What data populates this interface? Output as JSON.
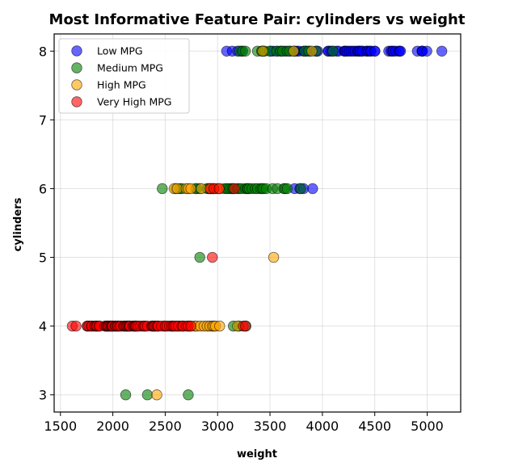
{
  "chart_data": {
    "type": "scatter",
    "title": "Most Informative Feature Pair: cylinders vs weight",
    "xlabel": "weight",
    "ylabel": "cylinders",
    "xlim": [
      1440,
      5320
    ],
    "ylim": [
      2.75,
      8.25
    ],
    "xticks": [
      1500,
      2000,
      2500,
      3000,
      3500,
      4000,
      4500,
      5000
    ],
    "yticks": [
      3,
      4,
      5,
      6,
      7,
      8
    ],
    "grid": true,
    "legend_position": "top-left",
    "series": [
      {
        "name": "Low MPG",
        "color": "#0000ff",
        "points": [
          [
            3086,
            8
          ],
          [
            3140,
            8
          ],
          [
            3190,
            8
          ],
          [
            3230,
            8
          ],
          [
            3430,
            8
          ],
          [
            3504,
            8
          ],
          [
            3530,
            8
          ],
          [
            3570,
            8
          ],
          [
            3609,
            8
          ],
          [
            3645,
            8
          ],
          [
            3693,
            8
          ],
          [
            3735,
            8
          ],
          [
            3755,
            8
          ],
          [
            3777,
            8
          ],
          [
            3820,
            8
          ],
          [
            3840,
            8
          ],
          [
            3850,
            8
          ],
          [
            3880,
            8
          ],
          [
            3940,
            8
          ],
          [
            3955,
            8
          ],
          [
            4054,
            8
          ],
          [
            4060,
            8
          ],
          [
            4080,
            8
          ],
          [
            4098,
            8
          ],
          [
            4135,
            8
          ],
          [
            4154,
            8
          ],
          [
            4209,
            8
          ],
          [
            4215,
            8
          ],
          [
            4220,
            8
          ],
          [
            4237,
            8
          ],
          [
            4257,
            8
          ],
          [
            4274,
            8
          ],
          [
            4294,
            8
          ],
          [
            4312,
            8
          ],
          [
            4335,
            8
          ],
          [
            4341,
            8
          ],
          [
            4354,
            8
          ],
          [
            4360,
            8
          ],
          [
            4380,
            8
          ],
          [
            4382,
            8
          ],
          [
            4422,
            8
          ],
          [
            4425,
            8
          ],
          [
            4440,
            8
          ],
          [
            4457,
            8
          ],
          [
            4464,
            8
          ],
          [
            4499,
            8
          ],
          [
            4502,
            8
          ],
          [
            4633,
            8
          ],
          [
            4654,
            8
          ],
          [
            4668,
            8
          ],
          [
            4677,
            8
          ],
          [
            4699,
            8
          ],
          [
            4732,
            8
          ],
          [
            4735,
            8
          ],
          [
            4746,
            8
          ],
          [
            4906,
            8
          ],
          [
            4951,
            8
          ],
          [
            4952,
            8
          ],
          [
            4955,
            8
          ],
          [
            4997,
            8
          ],
          [
            5140,
            8
          ],
          [
            3735,
            6
          ],
          [
            3785,
            6
          ],
          [
            3820,
            6
          ],
          [
            3907,
            6
          ]
        ]
      },
      {
        "name": "Medium MPG",
        "color": "#008000",
        "points": [
          [
            3210,
            8
          ],
          [
            3240,
            8
          ],
          [
            3265,
            8
          ],
          [
            3380,
            8
          ],
          [
            3420,
            8
          ],
          [
            3433,
            8
          ],
          [
            3449,
            8
          ],
          [
            3500,
            8
          ],
          [
            3563,
            8
          ],
          [
            3600,
            8
          ],
          [
            3620,
            8
          ],
          [
            3664,
            8
          ],
          [
            3685,
            8
          ],
          [
            3730,
            8
          ],
          [
            3830,
            8
          ],
          [
            3870,
            8
          ],
          [
            3940,
            8
          ],
          [
            4100,
            8
          ],
          [
            2472,
            6
          ],
          [
            2600,
            6
          ],
          [
            2640,
            6
          ],
          [
            2660,
            6
          ],
          [
            2790,
            6
          ],
          [
            2800,
            6
          ],
          [
            2830,
            6
          ],
          [
            2900,
            6
          ],
          [
            2910,
            6
          ],
          [
            2930,
            6
          ],
          [
            2950,
            6
          ],
          [
            2965,
            6
          ],
          [
            3060,
            6
          ],
          [
            3085,
            6
          ],
          [
            3100,
            6
          ],
          [
            3121,
            6
          ],
          [
            3139,
            6
          ],
          [
            3150,
            6
          ],
          [
            3190,
            6
          ],
          [
            3205,
            6
          ],
          [
            3230,
            6
          ],
          [
            3265,
            6
          ],
          [
            3282,
            6
          ],
          [
            3288,
            6
          ],
          [
            3302,
            6
          ],
          [
            3329,
            6
          ],
          [
            3360,
            6
          ],
          [
            3381,
            6
          ],
          [
            3410,
            6
          ],
          [
            3425,
            6
          ],
          [
            3439,
            6
          ],
          [
            3465,
            6
          ],
          [
            3525,
            6
          ],
          [
            3570,
            6
          ],
          [
            3632,
            6
          ],
          [
            3645,
            6
          ],
          [
            3664,
            6
          ],
          [
            3795,
            6
          ],
          [
            2830,
            5
          ],
          [
            3150,
            4
          ],
          [
            3205,
            4
          ],
          [
            3270,
            4
          ],
          [
            2123,
            3
          ],
          [
            2330,
            3
          ],
          [
            2720,
            3
          ]
        ]
      },
      {
        "name": "High MPG",
        "color": "#ffa500",
        "points": [
          [
            3430,
            8
          ],
          [
            3725,
            8
          ],
          [
            3900,
            8
          ],
          [
            2585,
            6
          ],
          [
            2615,
            6
          ],
          [
            2700,
            6
          ],
          [
            2720,
            6
          ],
          [
            2745,
            6
          ],
          [
            2845,
            6
          ],
          [
            2930,
            6
          ],
          [
            2990,
            6
          ],
          [
            3015,
            6
          ],
          [
            3535,
            5
          ],
          [
            2490,
            4
          ],
          [
            2565,
            4
          ],
          [
            2615,
            4
          ],
          [
            2635,
            4
          ],
          [
            2670,
            4
          ],
          [
            2720,
            4
          ],
          [
            2740,
            4
          ],
          [
            2780,
            4
          ],
          [
            2800,
            4
          ],
          [
            2835,
            4
          ],
          [
            2870,
            4
          ],
          [
            2900,
            4
          ],
          [
            2925,
            4
          ],
          [
            2950,
            4
          ],
          [
            2965,
            4
          ],
          [
            2980,
            4
          ],
          [
            3020,
            4
          ],
          [
            3190,
            4
          ],
          [
            2420,
            3
          ]
        ]
      },
      {
        "name": "Very High MPG",
        "color": "#ff0000",
        "points": [
          [
            2930,
            6
          ],
          [
            2965,
            6
          ],
          [
            3015,
            6
          ],
          [
            3160,
            6
          ],
          [
            2950,
            5
          ],
          [
            1613,
            4
          ],
          [
            1649,
            4
          ],
          [
            1755,
            4
          ],
          [
            1760,
            4
          ],
          [
            1773,
            4
          ],
          [
            1795,
            4
          ],
          [
            1800,
            4
          ],
          [
            1825,
            4
          ],
          [
            1835,
            4
          ],
          [
            1845,
            4
          ],
          [
            1850,
            4
          ],
          [
            1867,
            4
          ],
          [
            1875,
            4
          ],
          [
            1925,
            4
          ],
          [
            1937,
            4
          ],
          [
            1940,
            4
          ],
          [
            1950,
            4
          ],
          [
            1955,
            4
          ],
          [
            1965,
            4
          ],
          [
            1975,
            4
          ],
          [
            1985,
            4
          ],
          [
            1990,
            4
          ],
          [
            1995,
            4
          ],
          [
            2000,
            4
          ],
          [
            2020,
            4
          ],
          [
            2025,
            4
          ],
          [
            2035,
            4
          ],
          [
            2045,
            4
          ],
          [
            2050,
            4
          ],
          [
            2065,
            4
          ],
          [
            2075,
            4
          ],
          [
            2100,
            4
          ],
          [
            2110,
            4
          ],
          [
            2120,
            4
          ],
          [
            2130,
            4
          ],
          [
            2135,
            4
          ],
          [
            2145,
            4
          ],
          [
            2155,
            4
          ],
          [
            2160,
            4
          ],
          [
            2164,
            4
          ],
          [
            2190,
            4
          ],
          [
            2200,
            4
          ],
          [
            2210,
            4
          ],
          [
            2215,
            4
          ],
          [
            2220,
            4
          ],
          [
            2230,
            4
          ],
          [
            2245,
            4
          ],
          [
            2265,
            4
          ],
          [
            2290,
            4
          ],
          [
            2300,
            4
          ],
          [
            2310,
            4
          ],
          [
            2330,
            4
          ],
          [
            2370,
            4
          ],
          [
            2380,
            4
          ],
          [
            2385,
            4
          ],
          [
            2395,
            4
          ],
          [
            2405,
            4
          ],
          [
            2420,
            4
          ],
          [
            2430,
            4
          ],
          [
            2434,
            4
          ],
          [
            2465,
            4
          ],
          [
            2500,
            4
          ],
          [
            2515,
            4
          ],
          [
            2540,
            4
          ],
          [
            2560,
            4
          ],
          [
            2575,
            4
          ],
          [
            2585,
            4
          ],
          [
            2600,
            4
          ],
          [
            2625,
            4
          ],
          [
            2660,
            4
          ],
          [
            2670,
            4
          ],
          [
            2700,
            4
          ],
          [
            2720,
            4
          ],
          [
            2745,
            4
          ],
          [
            3245,
            4
          ],
          [
            3265,
            4
          ]
        ]
      }
    ]
  }
}
